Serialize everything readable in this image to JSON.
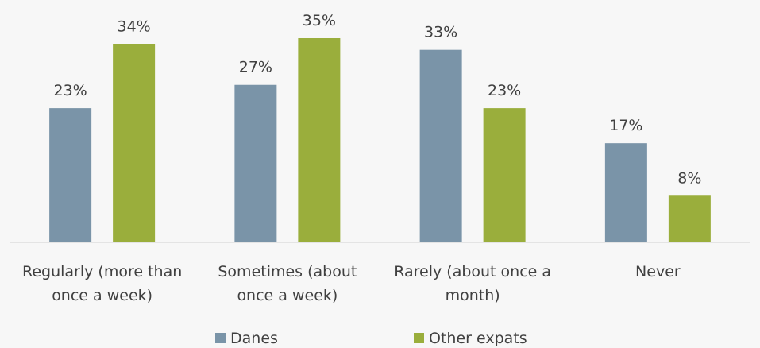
{
  "chart_data": {
    "type": "bar",
    "categories": [
      [
        "Regularly (more than",
        "once a week)"
      ],
      [
        "Sometimes (about",
        "once a week)"
      ],
      [
        "Rarely (about once a",
        "month)"
      ],
      [
        "Never"
      ]
    ],
    "series": [
      {
        "name": "Danes",
        "values": [
          23,
          27,
          33,
          17
        ],
        "labels": [
          "23%",
          "27%",
          "33%",
          "17%"
        ],
        "color": "#7a94a8"
      },
      {
        "name": "Other expats",
        "values": [
          34,
          35,
          23,
          8
        ],
        "labels": [
          "34%",
          "35%",
          "23%",
          "8%"
        ],
        "color": "#9aae3c"
      }
    ],
    "ylim": [
      0,
      35
    ],
    "grid": false,
    "legend_position": "bottom"
  }
}
